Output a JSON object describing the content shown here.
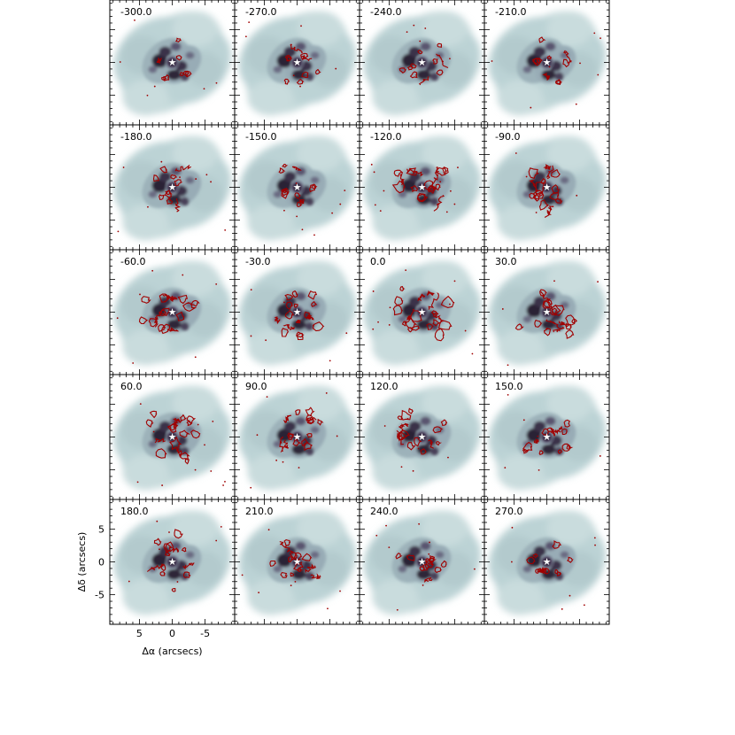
{
  "chart_data": {
    "type": "channel-map-grid",
    "rows": 5,
    "cols": 4,
    "panels": [
      {
        "label": "-300.0"
      },
      {
        "label": "-270.0"
      },
      {
        "label": "-240.0"
      },
      {
        "label": "-210.0"
      },
      {
        "label": "-180.0"
      },
      {
        "label": "-150.0"
      },
      {
        "label": "-120.0"
      },
      {
        "label": "-90.0"
      },
      {
        "label": "-60.0"
      },
      {
        "label": "-30.0"
      },
      {
        "label": "0.0"
      },
      {
        "label": "30.0"
      },
      {
        "label": "60.0"
      },
      {
        "label": "90.0"
      },
      {
        "label": "120.0"
      },
      {
        "label": "150.0"
      },
      {
        "label": "180.0"
      },
      {
        "label": "210.0"
      },
      {
        "label": "240.0"
      },
      {
        "label": "270.0"
      }
    ],
    "xlabel": "Δα (arcsecs)",
    "ylabel": "Δδ (arcsecs)",
    "xlim": [
      9.5,
      -9.5
    ],
    "ylim": [
      -9.5,
      9.5
    ],
    "xticks": [
      5,
      0,
      -5
    ],
    "yticks": [
      5,
      0,
      -5
    ],
    "x_tick_labels": [
      "5",
      "0",
      "-5"
    ],
    "y_tick_labels": [
      "5",
      "0",
      "-5"
    ],
    "background_colormap": [
      "#ffffff",
      "#a9c6c9",
      "#6f6f8a",
      "#1b1424"
    ],
    "contour_color": "#a00000",
    "star_marker": "white-star"
  }
}
